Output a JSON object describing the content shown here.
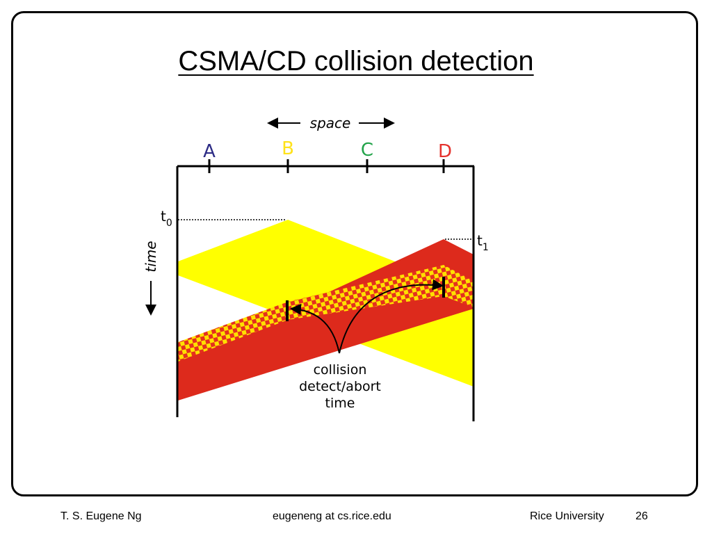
{
  "slide": {
    "title": "CSMA/CD collision detection",
    "footer": {
      "author": "T. S. Eugene Ng",
      "email": "eugeneng at cs.rice.edu",
      "institution": "Rice University",
      "page": "26"
    }
  },
  "diagram": {
    "space_label": "space",
    "time_label": "time",
    "nodes": [
      {
        "name": "A",
        "color": "#2c2b85"
      },
      {
        "name": "B",
        "color": "#ffe21a"
      },
      {
        "name": "C",
        "color": "#22a34a"
      },
      {
        "name": "D",
        "color": "#e5322d"
      }
    ],
    "t0": {
      "base": "t",
      "sub": "0"
    },
    "t1": {
      "base": "t",
      "sub": "1"
    },
    "annotation": [
      "collision",
      "detect/abort",
      "time"
    ],
    "colors": {
      "b_transmission": "#ffff00",
      "d_transmission": "#dd2a1c",
      "collision_check_a": "#e4301e",
      "collision_check_b": "#ffe000"
    }
  }
}
